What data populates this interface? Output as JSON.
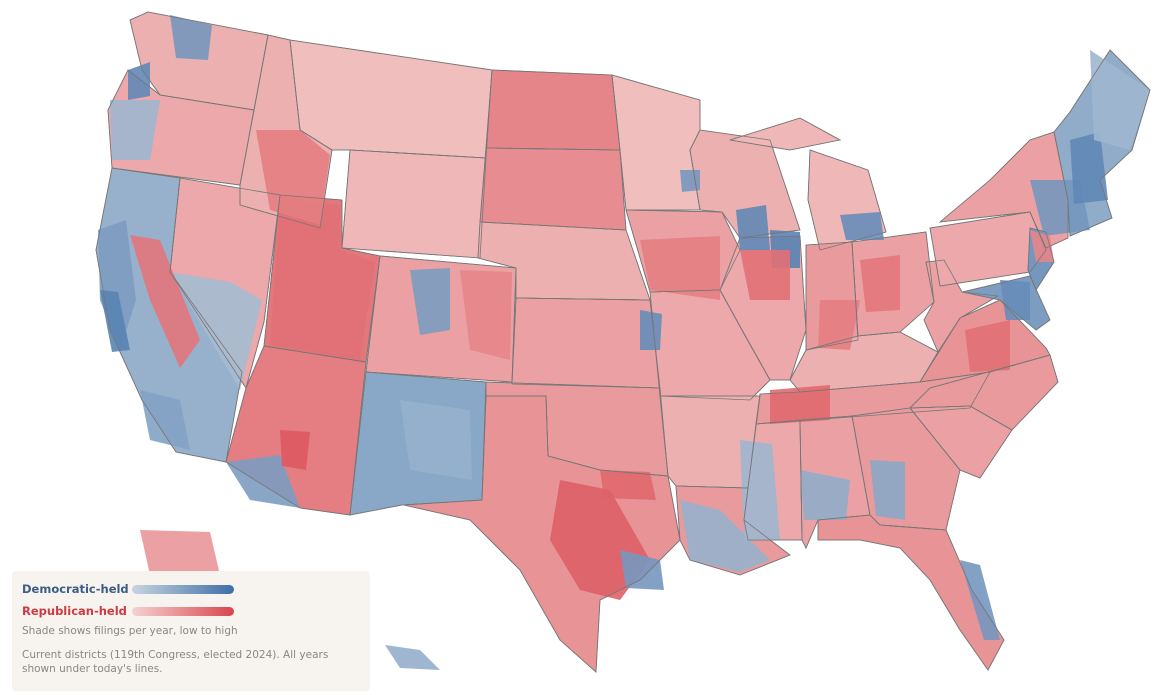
{
  "legend": {
    "democratic_label": "Democratic-held",
    "republican_label": "Republican-held",
    "shade_note": "Shade shows filings per year, low to high",
    "districts_note": "Current districts (119th Congress, elected 2024). All years shown under today's lines."
  },
  "colors": {
    "dem_low": "#c7d4df",
    "dem_high": "#3e6fa8",
    "rep_low": "#f4d3d1",
    "rep_high": "#d9454e",
    "dem_label": "#3b5d86",
    "rep_label": "#cf3a42",
    "border": "#777777"
  }
}
